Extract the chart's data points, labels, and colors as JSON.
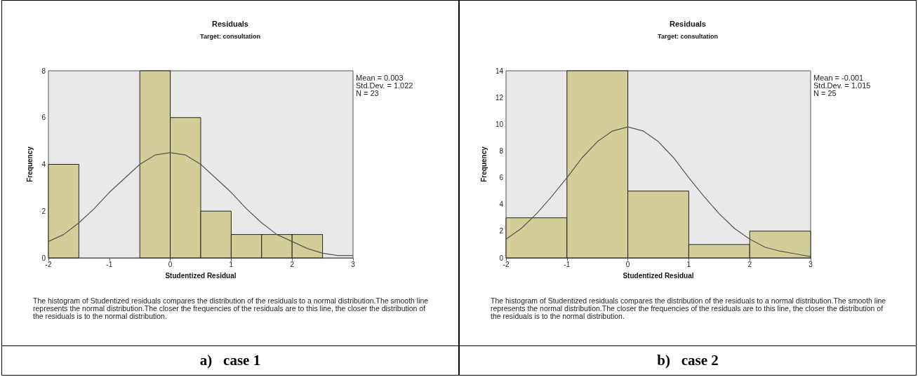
{
  "chart_data": [
    {
      "type": "histogram",
      "title": "Residuals",
      "subtitle": "Target: consultation",
      "xlabel": "Studentized Residual",
      "ylabel": "Frequency",
      "xlim": [
        -2,
        3
      ],
      "xticks": [
        -2,
        -1,
        0,
        1,
        2,
        3
      ],
      "ylim": [
        0,
        8
      ],
      "yticks": [
        0,
        2,
        4,
        6,
        8
      ],
      "series": [
        {
          "type": "histogram",
          "color": "#d3ce97",
          "bins": [
            -2,
            -1.5,
            -1,
            -0.5,
            0,
            0.5,
            1,
            1.5,
            2,
            2.5
          ],
          "values": [
            4,
            0,
            0,
            8,
            6,
            2,
            1,
            1,
            1
          ]
        },
        {
          "type": "line",
          "color": "#555555",
          "x": [
            -2,
            -1.75,
            -1.5,
            -1.25,
            -1,
            -0.75,
            -0.5,
            -0.25,
            0,
            0.25,
            0.5,
            0.75,
            1,
            1.25,
            1.5,
            1.75,
            2,
            2.25,
            2.5,
            2.75,
            3
          ],
          "values": [
            0.7,
            1.0,
            1.5,
            2.1,
            2.8,
            3.4,
            4.0,
            4.4,
            4.5,
            4.4,
            4.0,
            3.4,
            2.8,
            2.1,
            1.5,
            1.0,
            0.7,
            0.4,
            0.2,
            0.1,
            0.1
          ]
        }
      ],
      "annotations": [
        "Mean = 0.003",
        "Std.Dev. = 1.022",
        "N = 23",
        "The histogram of Studentized residuals compares the distribution of the residuals to a normal distribution.The smooth line represents the normal distribution.The closer the frequencies of the residuals are to this line, the closer the distribution of the residuals is to the normal distribution.",
        "a)   case 1"
      ]
    },
    {
      "type": "histogram",
      "title": "Residuals",
      "subtitle": "Target: consultation",
      "xlabel": "Studentized Residual",
      "ylabel": "Frequency",
      "xlim": [
        -2,
        3
      ],
      "xticks": [
        -2,
        -1,
        0,
        1,
        2,
        3
      ],
      "ylim": [
        0,
        14
      ],
      "yticks": [
        0,
        2,
        4,
        6,
        8,
        10,
        12,
        14
      ],
      "series": [
        {
          "type": "histogram",
          "color": "#d3ce97",
          "bins": [
            -2,
            -1,
            0,
            1,
            2,
            3
          ],
          "values": [
            3,
            14,
            5,
            1,
            2
          ]
        },
        {
          "type": "line",
          "color": "#555555",
          "x": [
            -2,
            -1.75,
            -1.5,
            -1.25,
            -1,
            -0.75,
            -0.5,
            -0.25,
            0,
            0.25,
            0.5,
            0.75,
            1,
            1.25,
            1.5,
            1.75,
            2,
            2.25,
            2.5,
            2.75,
            3
          ],
          "values": [
            1.4,
            2.2,
            3.3,
            4.6,
            6.0,
            7.5,
            8.7,
            9.5,
            9.8,
            9.5,
            8.7,
            7.5,
            6.0,
            4.6,
            3.3,
            2.2,
            1.4,
            0.8,
            0.5,
            0.3,
            0.1
          ]
        }
      ],
      "annotations": [
        "Mean = -0.001",
        "Std.Dev. = 1.015",
        "N = 25",
        "The histogram of Studentized residuals compares the distribution of the residuals to a normal distribution.The smooth line represents the normal distribution.The closer the frequencies of the residuals are to this line, the closer the distribution of the residuals is to the normal distribution.",
        "b)   case 2"
      ]
    }
  ]
}
